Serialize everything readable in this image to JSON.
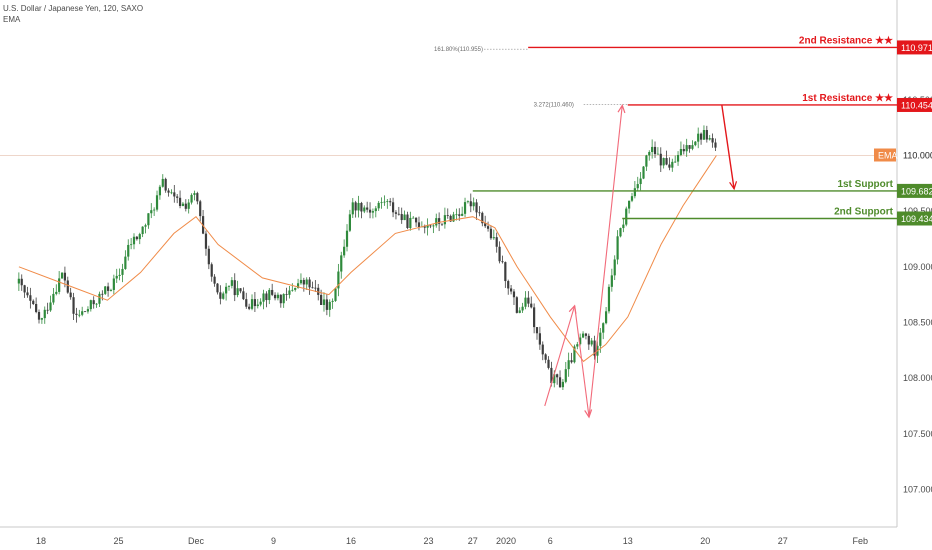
{
  "legend": {
    "symbol": "U.S. Dollar / Japanese Yen, 120, SAXO",
    "indicator": "EMA"
  },
  "colors": {
    "up": "#2f8a3c",
    "down": "#3d3d3d",
    "ema": "#f08b48",
    "resistance": "#e3171b",
    "support": "#4e8b2b",
    "arrow": "#f26a7a",
    "ema_tag": "#f08b48",
    "grid_line": "#e8c9b8"
  },
  "chart_data": {
    "type": "candlestick",
    "title": "U.S. Dollar / Japanese Yen, 120, SAXO",
    "ylim": [
      106.55,
      111.5
    ],
    "y_ticks": [
      "107.000",
      "107.500",
      "108.000",
      "108.500",
      "109.000",
      "109.500",
      "110.000",
      "110.500"
    ],
    "x_ticks": [
      "18",
      "25",
      "Dec",
      "9",
      "16",
      "23",
      "27",
      "2020",
      "6",
      "13",
      "20",
      "27",
      "Feb"
    ],
    "x_domain": [
      -3,
      72
    ],
    "x_tick_positions": [
      0,
      7,
      14,
      21,
      28,
      35,
      39,
      42,
      46,
      53,
      60,
      67,
      74
    ],
    "price_path": [
      [
        -2,
        108.85
      ],
      [
        0,
        108.5
      ],
      [
        1,
        108.75
      ],
      [
        2,
        108.95
      ],
      [
        3,
        108.55
      ],
      [
        4,
        108.6
      ],
      [
        5,
        108.7
      ],
      [
        6,
        108.8
      ],
      [
        7,
        108.9
      ],
      [
        8,
        109.2
      ],
      [
        9,
        109.3
      ],
      [
        10,
        109.5
      ],
      [
        11,
        109.75
      ],
      [
        12,
        109.6
      ],
      [
        13,
        109.55
      ],
      [
        14,
        109.65
      ],
      [
        15,
        109.05
      ],
      [
        16,
        108.7
      ],
      [
        17,
        108.85
      ],
      [
        18,
        108.75
      ],
      [
        19,
        108.65
      ],
      [
        20,
        108.75
      ],
      [
        21,
        108.75
      ],
      [
        22,
        108.7
      ],
      [
        23,
        108.85
      ],
      [
        24,
        108.85
      ],
      [
        25,
        108.75
      ],
      [
        26,
        108.6
      ],
      [
        27,
        109.0
      ],
      [
        28,
        109.55
      ],
      [
        29,
        109.55
      ],
      [
        30,
        109.5
      ],
      [
        31,
        109.6
      ],
      [
        32,
        109.5
      ],
      [
        33,
        109.4
      ],
      [
        34,
        109.4
      ],
      [
        35,
        109.38
      ],
      [
        36,
        109.4
      ],
      [
        37,
        109.45
      ],
      [
        38,
        109.5
      ],
      [
        39,
        109.6
      ],
      [
        40,
        109.4
      ],
      [
        41,
        109.2
      ],
      [
        42,
        108.9
      ],
      [
        43,
        108.6
      ],
      [
        44,
        108.7
      ],
      [
        45,
        108.3
      ],
      [
        46,
        108.0
      ],
      [
        47,
        107.95
      ],
      [
        48,
        108.2
      ],
      [
        49,
        108.4
      ],
      [
        50,
        108.25
      ],
      [
        51,
        108.6
      ],
      [
        52,
        109.2
      ],
      [
        53,
        109.55
      ],
      [
        54,
        109.8
      ],
      [
        55,
        110.05
      ],
      [
        56,
        109.95
      ],
      [
        57,
        109.9
      ],
      [
        58,
        110.05
      ],
      [
        59,
        110.15
      ],
      [
        60,
        110.2
      ],
      [
        61,
        110.05
      ]
    ],
    "ema_points": [
      [
        -2,
        109.0
      ],
      [
        2,
        108.85
      ],
      [
        6,
        108.7
      ],
      [
        9,
        108.95
      ],
      [
        12,
        109.3
      ],
      [
        14,
        109.45
      ],
      [
        16,
        109.2
      ],
      [
        20,
        108.9
      ],
      [
        24,
        108.8
      ],
      [
        26,
        108.75
      ],
      [
        28,
        108.95
      ],
      [
        32,
        109.3
      ],
      [
        36,
        109.4
      ],
      [
        39,
        109.45
      ],
      [
        41,
        109.35
      ],
      [
        43,
        109.0
      ],
      [
        46,
        108.55
      ],
      [
        49,
        108.15
      ],
      [
        51,
        108.3
      ],
      [
        53,
        108.55
      ],
      [
        56,
        109.2
      ],
      [
        58,
        109.55
      ],
      [
        60,
        109.85
      ],
      [
        61,
        110.0
      ]
    ],
    "levels": [
      {
        "label": "2nd Resistance ★★",
        "value": "110.971",
        "price": 110.971,
        "x_start": 44,
        "kind": "resistance"
      },
      {
        "label": "1st Resistance ★★",
        "value": "110.454",
        "price": 110.454,
        "x_start": 53,
        "kind": "resistance"
      },
      {
        "label": "1st Support",
        "value": "109.682",
        "price": 109.682,
        "x_start": 39,
        "kind": "support"
      },
      {
        "label": "2nd Support",
        "value": "109.434",
        "price": 109.434,
        "x_start": 52.5,
        "kind": "support"
      }
    ],
    "fib_labels": [
      {
        "text": "161.80%(110.955)",
        "price": 110.955,
        "x_start": 35.5,
        "x_end": 44
      },
      {
        "text": "3.272(110.460)",
        "price": 110.46,
        "x_start": 44.5,
        "x_end": 53
      }
    ],
    "ema_tag": {
      "label": "EMA",
      "price_label": "110.000",
      "price": 110.0
    },
    "arrows": [
      {
        "points": [
          [
            45.5,
            107.75
          ],
          [
            48.2,
            108.65
          ],
          [
            49.5,
            107.65
          ],
          [
            52.5,
            110.45
          ]
        ]
      },
      {
        "points": [
          [
            61.5,
            110.45
          ],
          [
            62.6,
            109.7
          ]
        ]
      }
    ]
  }
}
